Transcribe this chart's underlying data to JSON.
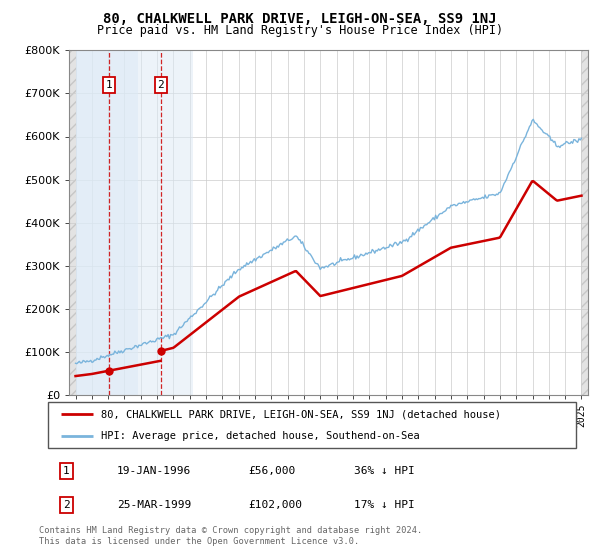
{
  "title": "80, CHALKWELL PARK DRIVE, LEIGH-ON-SEA, SS9 1NJ",
  "subtitle": "Price paid vs. HM Land Registry's House Price Index (HPI)",
  "ylim": [
    0,
    800000
  ],
  "yticks": [
    0,
    100000,
    200000,
    300000,
    400000,
    500000,
    600000,
    700000,
    800000
  ],
  "ytick_labels": [
    "£0",
    "£100K",
    "£200K",
    "£300K",
    "£400K",
    "£500K",
    "£600K",
    "£700K",
    "£800K"
  ],
  "xlim_start": 1993.6,
  "xlim_end": 2025.4,
  "hpi_color": "#7ab4dc",
  "price_color": "#cc0000",
  "sale1_date": 1996.05,
  "sale1_price": 56000,
  "sale1_label": "1",
  "sale2_date": 1999.23,
  "sale2_price": 102000,
  "sale2_label": "2",
  "legend_price_label": "80, CHALKWELL PARK DRIVE, LEIGH-ON-SEA, SS9 1NJ (detached house)",
  "legend_hpi_label": "HPI: Average price, detached house, Southend-on-Sea",
  "table_rows": [
    [
      "1",
      "19-JAN-1996",
      "£56,000",
      "36% ↓ HPI"
    ],
    [
      "2",
      "25-MAR-1999",
      "£102,000",
      "17% ↓ HPI"
    ]
  ],
  "footer": "Contains HM Land Registry data © Crown copyright and database right 2024.\nThis data is licensed under the Open Government Licence v3.0.",
  "shade_color": "#dce9f5",
  "hatch_color": "#c8c8c8"
}
